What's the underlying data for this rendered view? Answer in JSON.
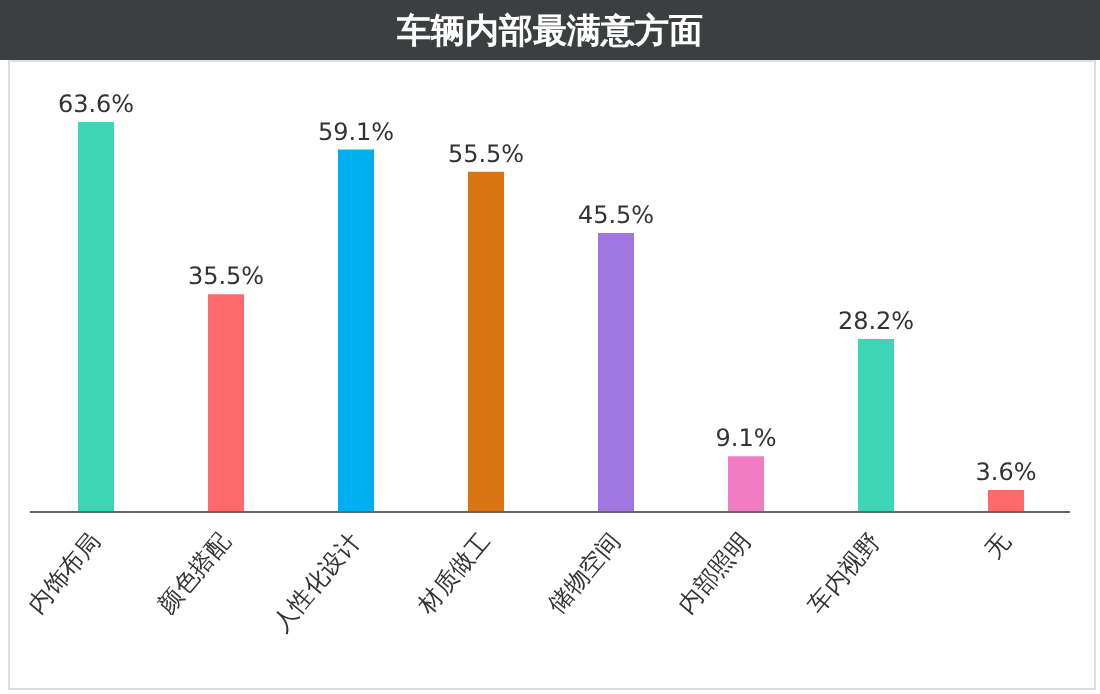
{
  "chart_data": {
    "type": "bar",
    "title": "车辆内部最满意方面",
    "categories": [
      "内饰布局",
      "颜色搭配",
      "人性化设计",
      "材质做工",
      "储物空间",
      "内部照明",
      "车内视野",
      "无"
    ],
    "values": [
      63.6,
      35.5,
      59.1,
      55.5,
      45.5,
      9.1,
      28.2,
      3.6
    ],
    "value_labels": [
      "63.6%",
      "35.5%",
      "59.1%",
      "55.5%",
      "45.5%",
      "9.1%",
      "28.2%",
      "3.6%"
    ],
    "colors": [
      "#3dd6b5",
      "#ff6a6a",
      "#00b0ee",
      "#d97510",
      "#a276e0",
      "#f07cc4",
      "#3dd6b5",
      "#ff6a6a"
    ],
    "grid": false,
    "legend": false
  }
}
